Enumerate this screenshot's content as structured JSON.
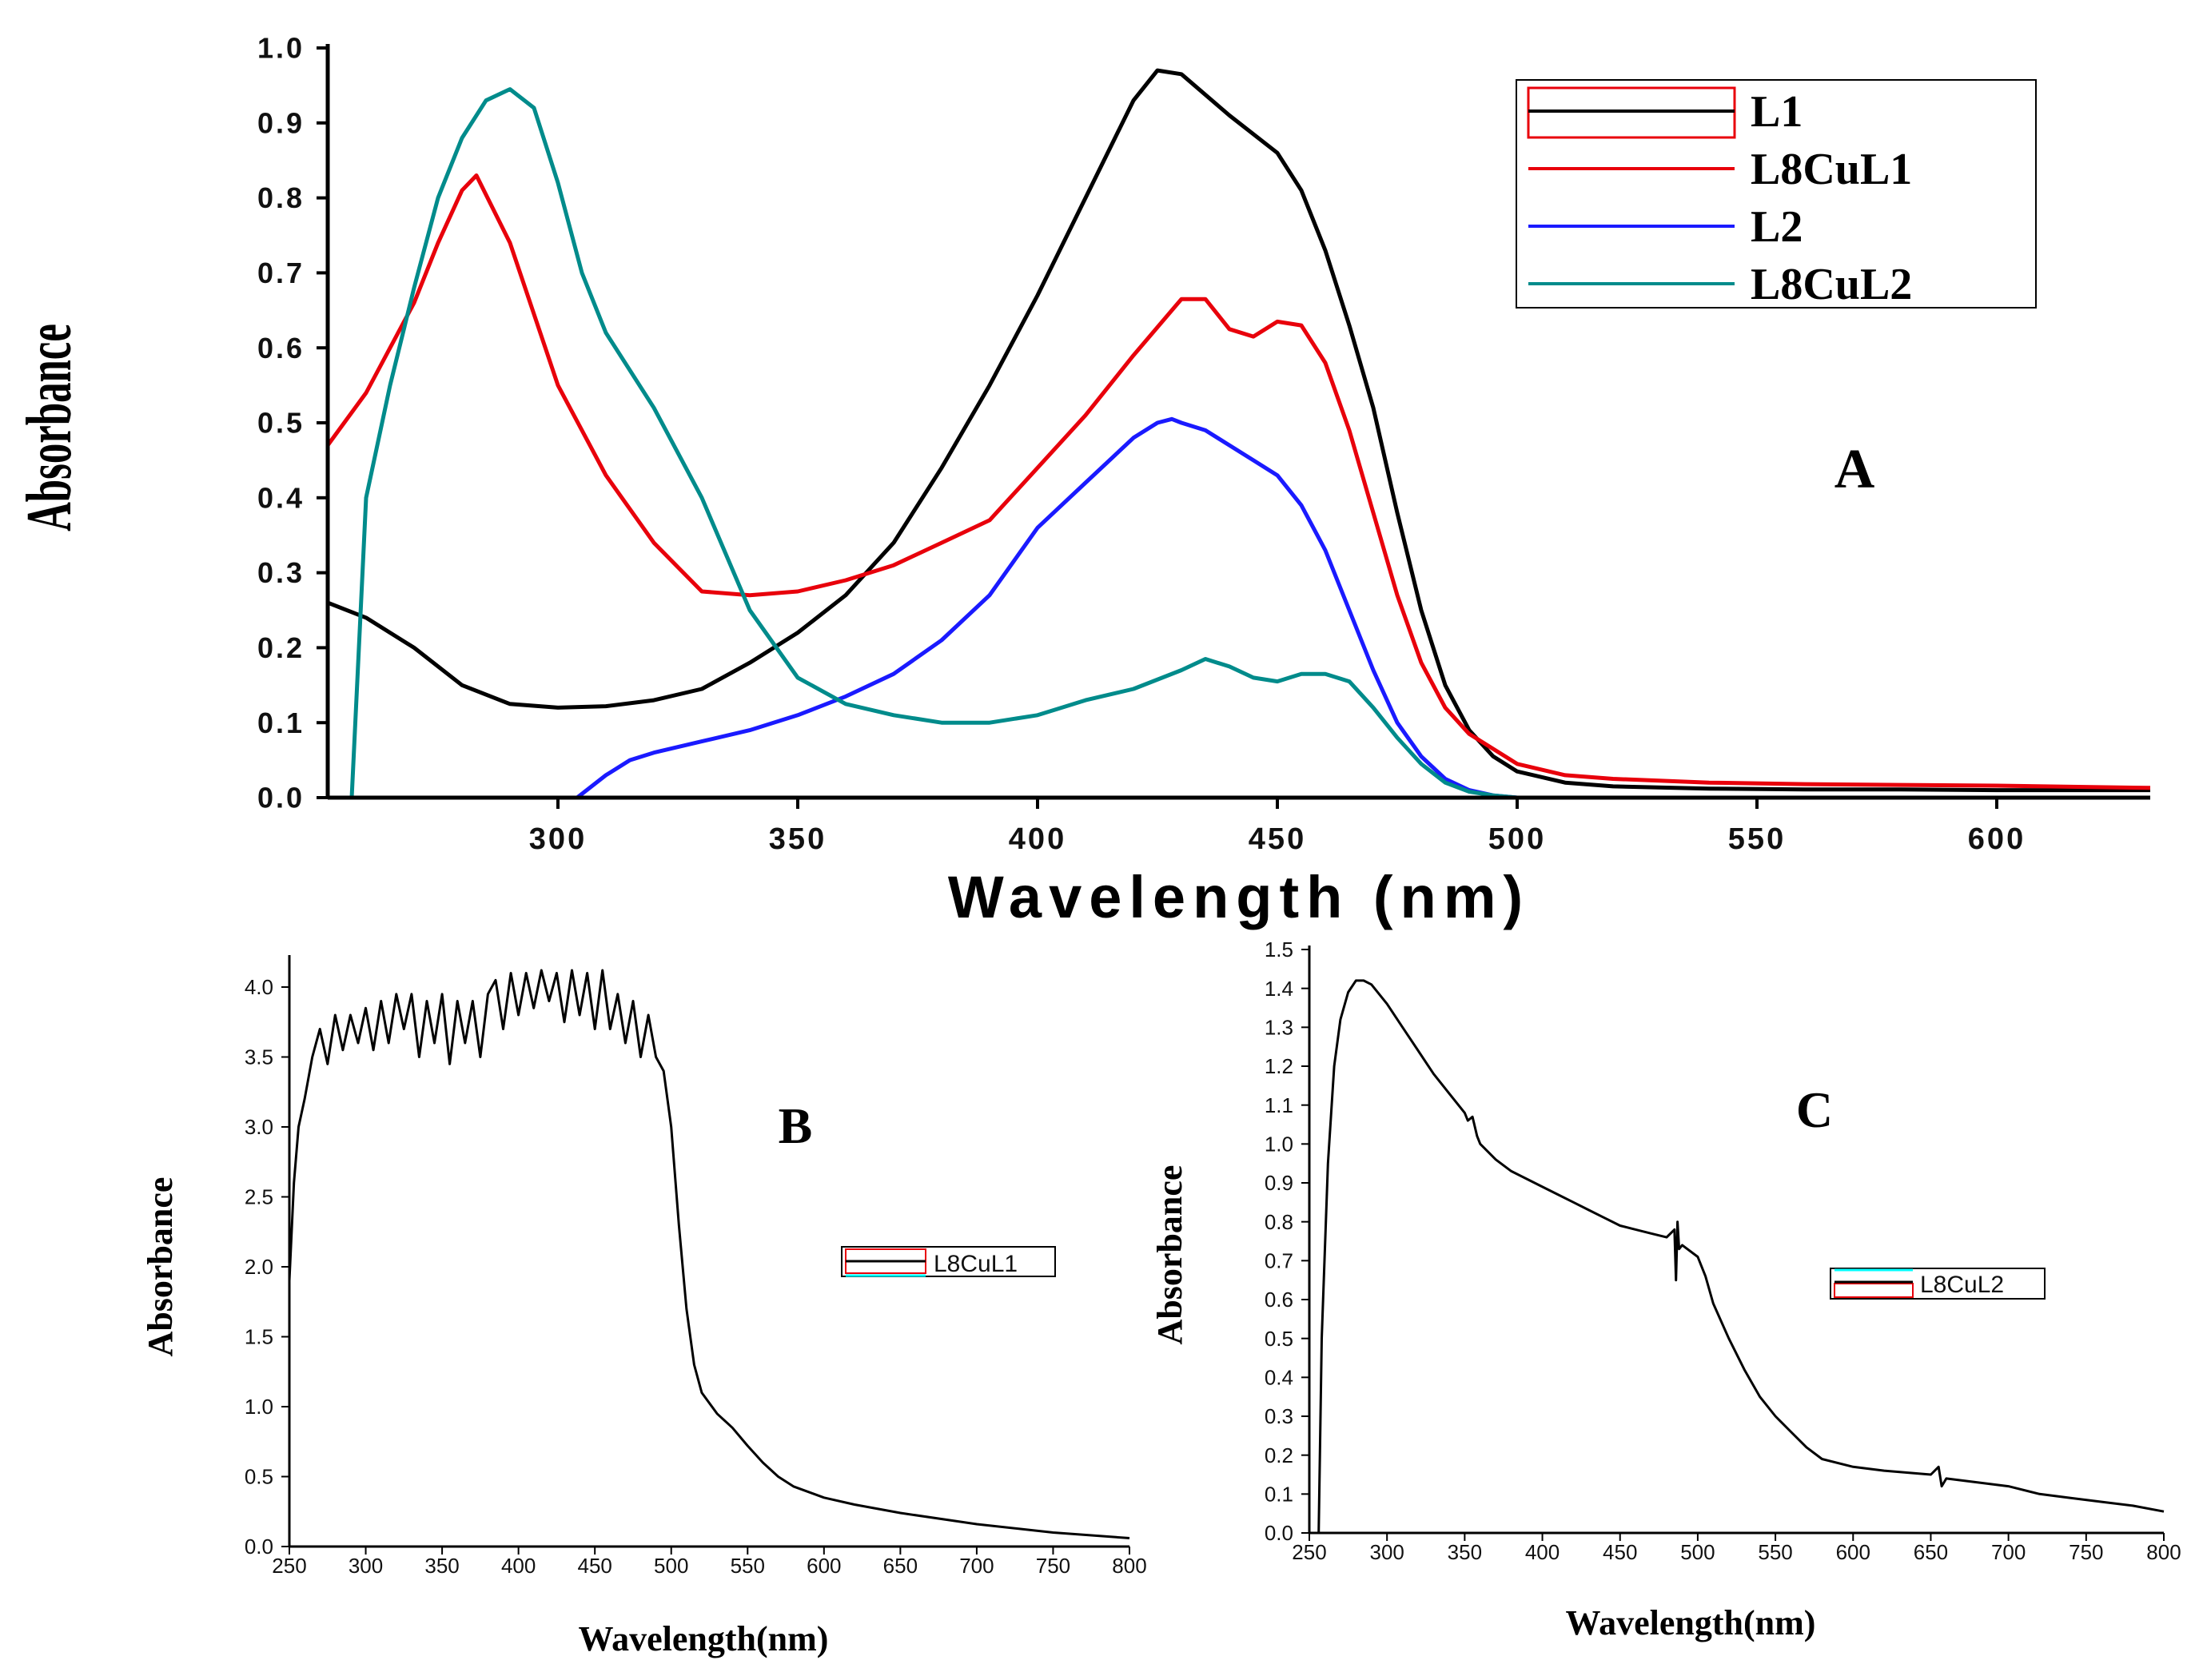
{
  "chart_data": [
    {
      "id": "A",
      "type": "line",
      "panel_label": "A",
      "xlabel": "Wavelength (nm)",
      "ylabel": "Absorbance",
      "xlim": [
        252,
        632
      ],
      "ylim": [
        0.0,
        1.0
      ],
      "xticks": [
        300,
        350,
        400,
        450,
        500,
        550,
        600
      ],
      "yticks": [
        0.0,
        0.1,
        0.2,
        0.3,
        0.4,
        0.5,
        0.6,
        0.7,
        0.8,
        0.9,
        1.0
      ],
      "ytick_labels": [
        "0.0",
        "0.1",
        "0.2",
        "0.3",
        "0.4",
        "0.5",
        "0.6",
        "0.7",
        "0.8",
        "0.9",
        "1.0"
      ],
      "legend": {
        "position": "top-right"
      },
      "series": [
        {
          "name": "L1",
          "color": "#000000",
          "x": [
            252,
            260,
            270,
            280,
            290,
            300,
            310,
            320,
            330,
            340,
            350,
            360,
            370,
            380,
            390,
            400,
            410,
            420,
            425,
            430,
            440,
            450,
            455,
            460,
            465,
            470,
            475,
            480,
            485,
            490,
            495,
            500,
            510,
            520,
            540,
            560,
            580,
            600,
            632
          ],
          "y": [
            0.26,
            0.24,
            0.2,
            0.15,
            0.125,
            0.12,
            0.122,
            0.13,
            0.145,
            0.18,
            0.22,
            0.27,
            0.34,
            0.44,
            0.55,
            0.67,
            0.8,
            0.93,
            0.97,
            0.965,
            0.91,
            0.86,
            0.81,
            0.73,
            0.63,
            0.52,
            0.38,
            0.25,
            0.15,
            0.09,
            0.055,
            0.035,
            0.02,
            0.015,
            0.012,
            0.011,
            0.011,
            0.01,
            0.01
          ]
        },
        {
          "name": "L8CuL1",
          "color": "#e8000b",
          "x": [
            252,
            260,
            270,
            275,
            280,
            283,
            290,
            300,
            310,
            320,
            330,
            340,
            350,
            360,
            370,
            380,
            390,
            400,
            410,
            420,
            430,
            435,
            440,
            445,
            450,
            455,
            460,
            465,
            470,
            475,
            480,
            485,
            490,
            500,
            510,
            520,
            540,
            560,
            580,
            600,
            632
          ],
          "y": [
            0.47,
            0.54,
            0.66,
            0.74,
            0.81,
            0.83,
            0.74,
            0.55,
            0.43,
            0.34,
            0.275,
            0.27,
            0.275,
            0.29,
            0.31,
            0.34,
            0.37,
            0.44,
            0.51,
            0.59,
            0.665,
            0.665,
            0.625,
            0.615,
            0.635,
            0.63,
            0.58,
            0.49,
            0.38,
            0.27,
            0.18,
            0.12,
            0.085,
            0.045,
            0.03,
            0.025,
            0.02,
            0.018,
            0.017,
            0.016,
            0.013
          ]
        },
        {
          "name": "L2",
          "color": "#1a1aff",
          "x": [
            304,
            310,
            315,
            320,
            330,
            340,
            350,
            360,
            370,
            380,
            390,
            400,
            410,
            420,
            425,
            428,
            430,
            435,
            440,
            445,
            450,
            455,
            460,
            465,
            470,
            475,
            480,
            485,
            490,
            495,
            500
          ],
          "y": [
            0.0,
            0.03,
            0.05,
            0.06,
            0.075,
            0.09,
            0.11,
            0.135,
            0.165,
            0.21,
            0.27,
            0.36,
            0.42,
            0.48,
            0.5,
            0.505,
            0.5,
            0.49,
            0.47,
            0.45,
            0.43,
            0.39,
            0.33,
            0.25,
            0.17,
            0.1,
            0.055,
            0.025,
            0.01,
            0.003,
            0.0
          ]
        },
        {
          "name": "L8CuL2",
          "color": "#008b8b",
          "x": [
            257,
            260,
            265,
            270,
            275,
            280,
            285,
            290,
            295,
            300,
            305,
            310,
            320,
            330,
            340,
            350,
            360,
            370,
            380,
            390,
            400,
            410,
            420,
            430,
            435,
            440,
            445,
            450,
            455,
            460,
            465,
            470,
            475,
            480,
            485,
            490,
            495,
            500,
            510,
            520
          ],
          "y": [
            0.0,
            0.4,
            0.55,
            0.68,
            0.8,
            0.88,
            0.93,
            0.945,
            0.92,
            0.82,
            0.7,
            0.62,
            0.52,
            0.4,
            0.25,
            0.16,
            0.125,
            0.11,
            0.1,
            0.1,
            0.11,
            0.13,
            0.145,
            0.17,
            0.185,
            0.175,
            0.16,
            0.155,
            0.165,
            0.165,
            0.155,
            0.12,
            0.08,
            0.045,
            0.02,
            0.008,
            0.003,
            0.0,
            0.0,
            0.0
          ]
        }
      ]
    },
    {
      "id": "B",
      "type": "line",
      "panel_label": "B",
      "xlabel": "Wavelength(nm)",
      "ylabel": "Absorbance",
      "xlim": [
        250,
        800
      ],
      "ylim": [
        0.0,
        4.2
      ],
      "xticks": [
        250,
        300,
        350,
        400,
        450,
        500,
        550,
        600,
        650,
        700,
        750,
        800
      ],
      "yticks": [
        0.0,
        0.5,
        1.0,
        1.5,
        2.0,
        2.5,
        3.0,
        3.5,
        4.0
      ],
      "ytick_labels": [
        "0.0",
        "0.5",
        "1.0",
        "1.5",
        "2.0",
        "2.5",
        "3.0",
        "3.5",
        "4.0"
      ],
      "legend": {
        "position": "center-right"
      },
      "series": [
        {
          "name": "L8CuL1",
          "color": "#000000",
          "x": [
            250,
            253,
            256,
            260,
            265,
            270,
            275,
            280,
            285,
            290,
            295,
            300,
            305,
            310,
            315,
            320,
            325,
            330,
            335,
            340,
            345,
            350,
            355,
            360,
            365,
            370,
            375,
            380,
            385,
            390,
            395,
            400,
            405,
            410,
            415,
            420,
            425,
            430,
            435,
            440,
            445,
            450,
            455,
            460,
            465,
            470,
            475,
            480,
            485,
            490,
            495,
            500,
            505,
            510,
            515,
            520,
            530,
            540,
            550,
            560,
            570,
            580,
            600,
            620,
            650,
            700,
            750,
            800
          ],
          "y": [
            1.9,
            2.6,
            3.0,
            3.2,
            3.5,
            3.7,
            3.45,
            3.8,
            3.55,
            3.8,
            3.6,
            3.85,
            3.55,
            3.9,
            3.6,
            3.95,
            3.7,
            3.95,
            3.5,
            3.9,
            3.6,
            3.95,
            3.45,
            3.9,
            3.6,
            3.9,
            3.5,
            3.95,
            4.05,
            3.7,
            4.1,
            3.8,
            4.1,
            3.85,
            4.12,
            3.9,
            4.1,
            3.75,
            4.12,
            3.8,
            4.1,
            3.7,
            4.12,
            3.7,
            3.95,
            3.6,
            3.9,
            3.5,
            3.8,
            3.5,
            3.4,
            3.0,
            2.3,
            1.7,
            1.3,
            1.1,
            0.95,
            0.85,
            0.72,
            0.6,
            0.5,
            0.43,
            0.35,
            0.3,
            0.24,
            0.16,
            0.1,
            0.06
          ]
        }
      ]
    },
    {
      "id": "C",
      "type": "line",
      "panel_label": "C",
      "xlabel": "Wavelength(nm)",
      "ylabel": "Absorbance",
      "xlim": [
        250,
        800
      ],
      "ylim": [
        0.0,
        1.5
      ],
      "xticks": [
        250,
        300,
        350,
        400,
        450,
        500,
        550,
        600,
        650,
        700,
        750,
        800
      ],
      "yticks": [
        0.0,
        0.1,
        0.2,
        0.3,
        0.4,
        0.5,
        0.6,
        0.7,
        0.8,
        0.9,
        1.0,
        1.1,
        1.2,
        1.3,
        1.4,
        1.5
      ],
      "ytick_labels": [
        "0.0",
        "0.1",
        "0.2",
        "0.3",
        "0.4",
        "0.5",
        "0.6",
        "0.7",
        "0.8",
        "0.9",
        "1.0",
        "1.1",
        "1.2",
        "1.3",
        "1.4",
        "1.5"
      ],
      "legend": {
        "position": "center-right"
      },
      "series": [
        {
          "name": "L8CuL2",
          "color": "#000000",
          "x": [
            256,
            258,
            262,
            266,
            270,
            275,
            280,
            285,
            290,
            300,
            310,
            320,
            330,
            340,
            350,
            352,
            355,
            358,
            360,
            370,
            380,
            390,
            400,
            410,
            420,
            430,
            440,
            450,
            460,
            470,
            480,
            485,
            486,
            487,
            488,
            490,
            500,
            505,
            510,
            520,
            530,
            540,
            550,
            560,
            570,
            580,
            600,
            620,
            650,
            655,
            657,
            660,
            680,
            700,
            720,
            740,
            760,
            780,
            800
          ],
          "y": [
            0.0,
            0.5,
            0.95,
            1.2,
            1.32,
            1.39,
            1.42,
            1.42,
            1.41,
            1.36,
            1.3,
            1.24,
            1.18,
            1.13,
            1.08,
            1.06,
            1.07,
            1.02,
            1.0,
            0.96,
            0.93,
            0.91,
            0.89,
            0.87,
            0.85,
            0.83,
            0.81,
            0.79,
            0.78,
            0.77,
            0.76,
            0.78,
            0.65,
            0.8,
            0.73,
            0.74,
            0.71,
            0.66,
            0.59,
            0.5,
            0.42,
            0.35,
            0.3,
            0.26,
            0.22,
            0.19,
            0.17,
            0.16,
            0.15,
            0.17,
            0.12,
            0.14,
            0.13,
            0.12,
            0.1,
            0.09,
            0.08,
            0.07,
            0.055
          ]
        }
      ]
    }
  ]
}
